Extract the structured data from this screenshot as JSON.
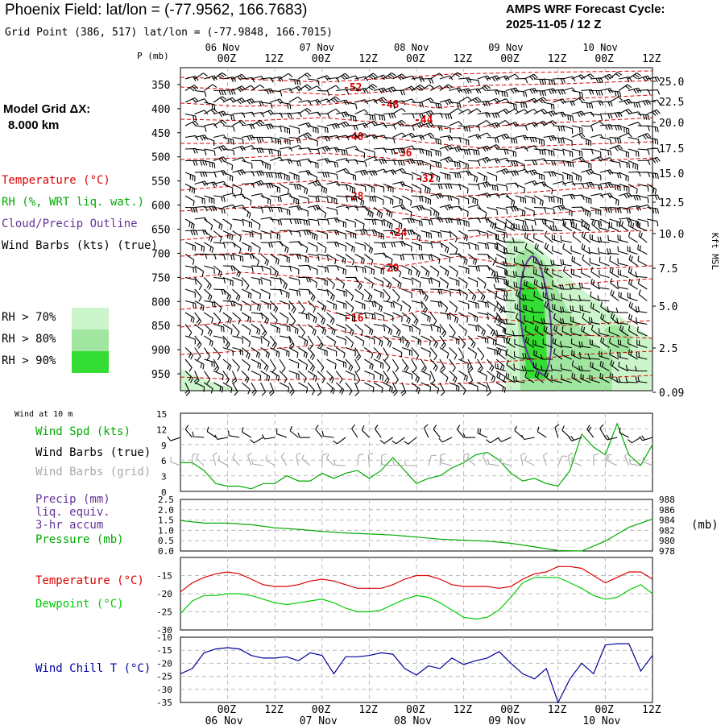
{
  "header": {
    "title": "Phoenix Field:  lat/lon = (-77.9562, 166.7683)",
    "grid_point": "Grid Point (386, 517) lat/lon = (-77.9848, 166.7015)",
    "cycle_line1": "AMPS WRF Forecast Cycle:",
    "cycle_line2": "2025-11-05 / 12  Z"
  },
  "model": {
    "line1": "Model Grid ΔX:",
    "line2": "8.000 km"
  },
  "legend": {
    "temperature": "Temperature (°C)",
    "rh": "RH (%, WRT liq. wat.)",
    "cloud": "Cloud/Precip Outline",
    "wind": "Wind Barbs (kts) (true)",
    "rh_levels": [
      "RH > 70%",
      "RH > 80%",
      "RH > 90%"
    ]
  },
  "colors": {
    "temperature": "#dd0000",
    "rh": "#00aa00",
    "cloud": "#663399",
    "wind": "#000000",
    "wind_grid": "#aaaaaa",
    "rh70": "#ccf5cc",
    "rh80": "#a0e6a0",
    "rh90": "#33dd33",
    "precip": "#663399",
    "pressure": "#00aa00",
    "dewpoint": "#00cc00",
    "windchill": "#000099"
  },
  "chart_data": [
    {
      "type": "contour",
      "name": "upper-air",
      "ylabel": "P (mb)",
      "yaxis_right_label": "Kft MSL",
      "yticks": [
        350,
        400,
        450,
        500,
        550,
        600,
        650,
        700,
        750,
        800,
        850,
        900,
        950
      ],
      "right_ticks": [
        "25.0",
        "22.5",
        "20.0",
        "17.5",
        "15.0",
        "12.5",
        "10.0",
        "7.5",
        "5.0",
        "2.5",
        "0.09"
      ],
      "time_ticks": [
        "00Z",
        "12Z",
        "00Z",
        "12Z",
        "00Z",
        "12Z",
        "00Z",
        "12Z",
        "00Z",
        "12Z"
      ],
      "date_labels": [
        "06 Nov",
        "07 Nov",
        "08 Nov",
        "09 Nov",
        "10 Nov"
      ],
      "temp_labels": [
        "-52",
        "-48",
        "-44",
        "-40",
        "-36",
        "-32",
        "-28",
        "-24",
        "-20",
        "-16"
      ]
    },
    {
      "type": "line",
      "name": "wind-10m",
      "panel_title": "Wind at 10 m",
      "legend": [
        "Wind Spd (kts)",
        "Wind Barbs (true)",
        "Wind Barbs (grid)"
      ],
      "yticks": [
        "0",
        "3",
        "6",
        "9",
        "12",
        "15"
      ],
      "ylim": [
        0,
        15
      ],
      "x_hours": [
        0,
        3,
        6,
        9,
        12,
        15,
        18,
        21,
        24,
        27,
        30,
        33,
        36,
        39,
        42,
        45,
        48,
        51,
        54,
        57,
        60,
        63,
        66,
        69,
        72,
        75,
        78,
        81,
        84,
        87,
        90,
        93,
        96,
        99,
        102,
        105,
        108,
        111,
        114,
        117,
        120
      ],
      "values": [
        5.5,
        5.5,
        4,
        1.5,
        1,
        1,
        0.5,
        1.5,
        1.5,
        3,
        2,
        2,
        3.5,
        2.5,
        3.5,
        4,
        2.5,
        4,
        6.5,
        4,
        1.5,
        2.5,
        3,
        4.5,
        5.5,
        7,
        7.5,
        6,
        3.5,
        2,
        2.5,
        1.5,
        1,
        4,
        11,
        8.5,
        7,
        13,
        7,
        5,
        9
      ]
    },
    {
      "type": "line",
      "name": "precip-pressure",
      "legend": [
        "Precip (mm)",
        "liq. equiv.",
        "3-hr accum",
        "Pressure (mb)"
      ],
      "yticks_left": [
        "0.0",
        "0.5",
        "1.0",
        "1.5",
        "2.0",
        "2.5"
      ],
      "yticks_right": [
        "978",
        "980",
        "982",
        "984",
        "986",
        "988"
      ],
      "right_unit": "(mb)",
      "ylim_left": [
        0,
        2.5
      ],
      "ylim_right": [
        978,
        988
      ],
      "x_hours": [
        0,
        6,
        12,
        18,
        24,
        30,
        36,
        42,
        48,
        54,
        60,
        66,
        72,
        78,
        84,
        90,
        96,
        102,
        108,
        114,
        120
      ],
      "pressure": [
        983.9,
        983.4,
        983.4,
        983.1,
        982.5,
        982.2,
        981.8,
        981.5,
        981.3,
        981.1,
        980.7,
        980.3,
        980.1,
        979.9,
        979.5,
        978.8,
        978.1,
        978.0,
        979.9,
        982.6,
        984.2
      ]
    },
    {
      "type": "line",
      "name": "temperature-dewpoint",
      "legend": [
        "Temperature (°C)",
        "Dewpoint (°C)"
      ],
      "yticks": [
        "-30",
        "-25",
        "-20",
        "-15"
      ],
      "ylim": [
        -30,
        -10
      ],
      "x_hours": [
        0,
        3,
        6,
        9,
        12,
        15,
        18,
        21,
        24,
        27,
        30,
        33,
        36,
        39,
        42,
        45,
        48,
        51,
        54,
        57,
        60,
        63,
        66,
        69,
        72,
        75,
        78,
        81,
        84,
        87,
        90,
        93,
        96,
        99,
        102,
        105,
        108,
        111,
        114,
        117,
        120
      ],
      "temperature": [
        -19.5,
        -17,
        -15.5,
        -14.5,
        -14,
        -14.5,
        -16,
        -17.5,
        -18,
        -18,
        -17.5,
        -16.5,
        -16,
        -16.5,
        -17.5,
        -18.5,
        -18.5,
        -18.5,
        -17.5,
        -16,
        -15,
        -15,
        -16,
        -17.5,
        -18,
        -18,
        -18,
        -18.5,
        -18,
        -16,
        -14.5,
        -14,
        -12.5,
        -12.5,
        -13,
        -15,
        -17,
        -15.5,
        -14,
        -14,
        -16
      ],
      "dewpoint": [
        -25.5,
        -22,
        -20.5,
        -20.5,
        -20,
        -20,
        -20.5,
        -21.5,
        -22.5,
        -23,
        -22.5,
        -22,
        -21.5,
        -22.5,
        -24,
        -25,
        -25,
        -24.5,
        -23,
        -21.5,
        -20.5,
        -21,
        -22.5,
        -24.5,
        -26.5,
        -27,
        -26.5,
        -24.5,
        -21,
        -17,
        -15.5,
        -15.5,
        -15.5,
        -17,
        -18.5,
        -20.5,
        -21.5,
        -21,
        -19,
        -17.5,
        -20
      ]
    },
    {
      "type": "line",
      "name": "wind-chill",
      "legend": [
        "Wind Chill T (°C)"
      ],
      "yticks": [
        "-35",
        "-30",
        "-25",
        "-20",
        "-15",
        "-10"
      ],
      "ylim": [
        -35,
        -10
      ],
      "x_hours": [
        0,
        3,
        6,
        9,
        12,
        15,
        18,
        21,
        24,
        27,
        30,
        33,
        36,
        39,
        42,
        45,
        48,
        51,
        54,
        57,
        60,
        63,
        66,
        69,
        72,
        75,
        78,
        81,
        84,
        87,
        90,
        93,
        96,
        99,
        102,
        105,
        108,
        111,
        114,
        117,
        120
      ],
      "values": [
        -24,
        -22,
        -16,
        -14.5,
        -14,
        -14.5,
        -17,
        -18,
        -18,
        -17.5,
        -19,
        -16,
        -17,
        -24,
        -17.5,
        -17.5,
        -17,
        -16,
        -16.5,
        -22,
        -24.5,
        -21,
        -22,
        -18,
        -20.5,
        -19,
        -18,
        -15.5,
        -20,
        -24,
        -26,
        -22,
        -35,
        -26,
        -20,
        -24,
        -13,
        -12.5,
        -12.5,
        -23,
        -17
      ]
    }
  ]
}
